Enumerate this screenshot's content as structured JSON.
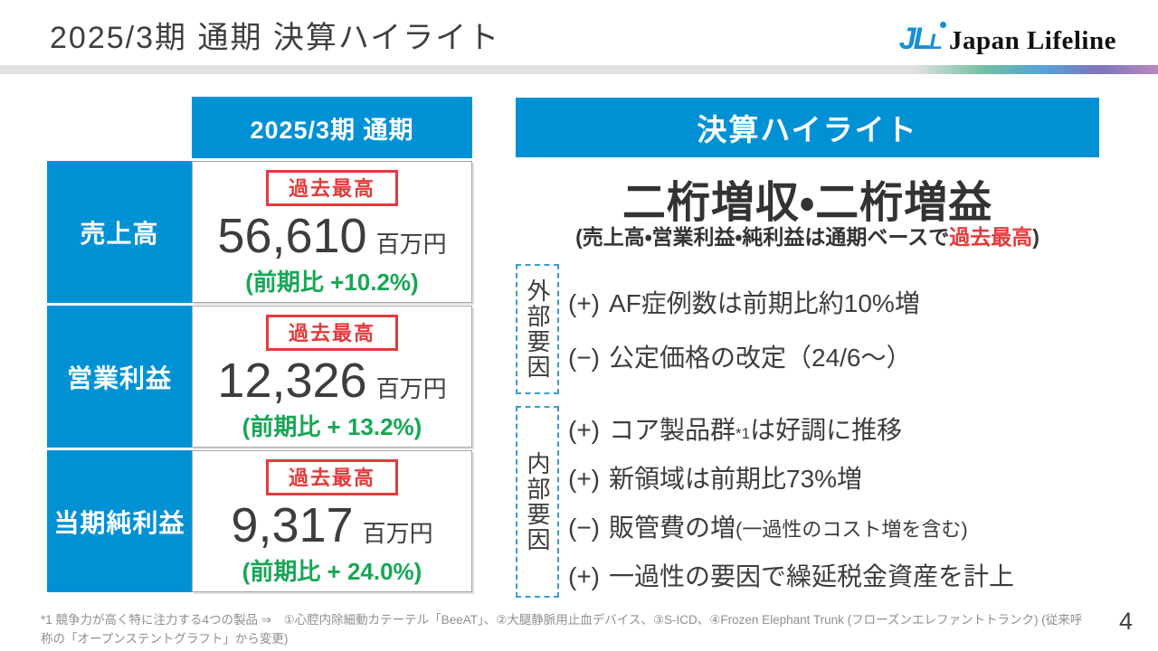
{
  "title": "2025/3期 通期 決算ハイライト",
  "logo": {
    "mark_main": "JL",
    "mark_small": "L",
    "name": "Japan Lifeline"
  },
  "colors": {
    "accent_blue": "#0091d5",
    "record_red": "#e23b3b",
    "yoy_green": "#17a755"
  },
  "table": {
    "header": "2025/3期 通期",
    "rows": [
      {
        "label": "売上高",
        "badge": "過去最高",
        "value": "56,610",
        "unit": "百万円",
        "yoy": "(前期比 +10.2%)"
      },
      {
        "label": "営業利益",
        "badge": "過去最高",
        "value": "12,326",
        "unit": "百万円",
        "yoy": "(前期比 + 13.2%)"
      },
      {
        "label": "当期純利益",
        "badge": "過去最高",
        "value": "9,317",
        "unit": "百万円",
        "yoy": "(前期比 + 24.0%)"
      }
    ]
  },
  "highlight": {
    "header": "決算ハイライト",
    "headline": "二桁増収・二桁増益",
    "sub_prefix": "(売上高・営業利益・純利益は通期ベースで",
    "sub_emphasis": "過去最高",
    "sub_suffix": ")",
    "sections": [
      {
        "label": "外部要因",
        "items": [
          {
            "sign": "(+)",
            "text": "AF症例数は前期比約10%増"
          },
          {
            "sign": "(−)",
            "text": "公定価格の改定（24/6～）"
          }
        ]
      },
      {
        "label": "内部要因",
        "items": [
          {
            "sign": "(+)",
            "text": "コア製品群",
            "sup": "*1",
            "text2": "は好調に推移"
          },
          {
            "sign": "(+)",
            "text": "新領域は前期比73%増"
          },
          {
            "sign": "(−)",
            "text": "販管費の増",
            "small": "(一過性のコスト増を含む)"
          },
          {
            "sign": "(+)",
            "text": "一過性の要因で繰延税金資産を計上"
          }
        ]
      }
    ]
  },
  "footnote": "*1 競争力が高く特に注力する4つの製品 ⇒　①心腔内除細動カテーテル「BeeAT」、②大腿静脈用止血デバイス、③S-ICD、④Frozen Elephant Trunk (フローズンエレファントトランク) (従来呼称の「オープンステントグラフト」から変更)",
  "page_number": "4"
}
